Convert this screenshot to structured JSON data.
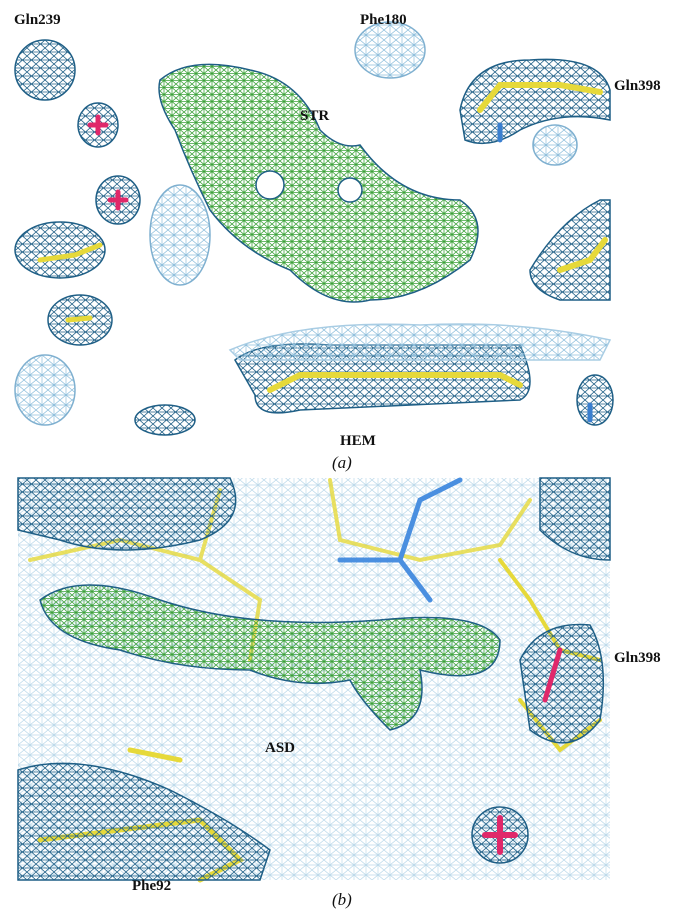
{
  "panels": [
    {
      "caption": "(a)",
      "labels": [
        "Gln239",
        "Phe180",
        "STR",
        "Gln398",
        "HEM"
      ]
    },
    {
      "caption": "(b)",
      "labels": [
        "ASD",
        "Gln398",
        "Phe92"
      ]
    }
  ]
}
